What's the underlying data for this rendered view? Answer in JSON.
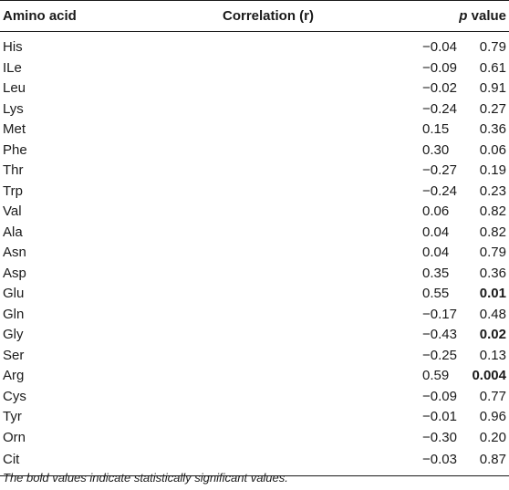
{
  "table": {
    "headers": {
      "amino_acid": "Amino acid",
      "correlation": "Correlation (r)",
      "p_prefix": "p",
      "p_suffix": " value"
    },
    "rows": [
      {
        "amino_acid": "His",
        "r": "−0.04",
        "p": "0.79",
        "significant": false
      },
      {
        "amino_acid": "ILe",
        "r": "−0.09",
        "p": "0.61",
        "significant": false
      },
      {
        "amino_acid": "Leu",
        "r": "−0.02",
        "p": "0.91",
        "significant": false
      },
      {
        "amino_acid": "Lys",
        "r": "−0.24",
        "p": "0.27",
        "significant": false
      },
      {
        "amino_acid": "Met",
        "r": "0.15",
        "p": "0.36",
        "significant": false
      },
      {
        "amino_acid": "Phe",
        "r": "0.30",
        "p": "0.06",
        "significant": false
      },
      {
        "amino_acid": "Thr",
        "r": "−0.27",
        "p": "0.19",
        "significant": false
      },
      {
        "amino_acid": "Trp",
        "r": "−0.24",
        "p": "0.23",
        "significant": false
      },
      {
        "amino_acid": "Val",
        "r": "0.06",
        "p": "0.82",
        "significant": false
      },
      {
        "amino_acid": "Ala",
        "r": "0.04",
        "p": "0.82",
        "significant": false
      },
      {
        "amino_acid": "Asn",
        "r": "0.04",
        "p": "0.79",
        "significant": false
      },
      {
        "amino_acid": "Asp",
        "r": "0.35",
        "p": "0.36",
        "significant": false
      },
      {
        "amino_acid": "Glu",
        "r": "0.55",
        "p": "0.01",
        "significant": true
      },
      {
        "amino_acid": "Gln",
        "r": "−0.17",
        "p": "0.48",
        "significant": false
      },
      {
        "amino_acid": "Gly",
        "r": "−0.43",
        "p": "0.02",
        "significant": true
      },
      {
        "amino_acid": "Ser",
        "r": "−0.25",
        "p": "0.13",
        "significant": false
      },
      {
        "amino_acid": "Arg",
        "r": "0.59",
        "p": "0.004",
        "significant": true
      },
      {
        "amino_acid": "Cys",
        "r": "−0.09",
        "p": "0.77",
        "significant": false
      },
      {
        "amino_acid": "Tyr",
        "r": "−0.01",
        "p": "0.96",
        "significant": false
      },
      {
        "amino_acid": "Orn",
        "r": "−0.30",
        "p": "0.20",
        "significant": false
      },
      {
        "amino_acid": "Cit",
        "r": "−0.03",
        "p": "0.87",
        "significant": false
      }
    ]
  },
  "footnote": "The bold values indicate statistically significant values."
}
